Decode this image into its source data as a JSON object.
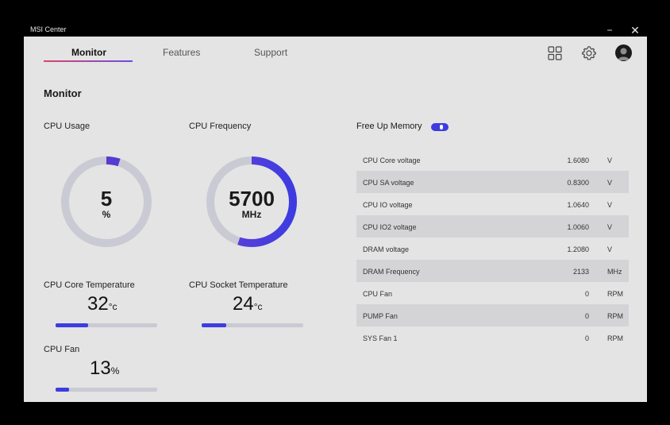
{
  "app": {
    "title": "MSI Center",
    "minimize": "−",
    "close": "✕"
  },
  "tabs": [
    {
      "label": "Monitor",
      "active": true
    },
    {
      "label": "Features"
    },
    {
      "label": "Support"
    }
  ],
  "header_icons": [
    "grid-icon",
    "gear-icon",
    "avatar"
  ],
  "page_title": "Monitor",
  "cpu_usage": {
    "label": "CPU Usage",
    "value": "5",
    "unit": "%",
    "fraction": 0.05
  },
  "cpu_frequency": {
    "label": "CPU Frequency",
    "value": "5700",
    "unit": "MHz",
    "fraction": 0.55
  },
  "cpu_core_temp": {
    "label": "CPU Core Temperature",
    "value": "32",
    "unit": "°c",
    "fraction": 0.32
  },
  "cpu_socket_temp": {
    "label": "CPU Socket Temperature",
    "value": "24",
    "unit": "°c",
    "fraction": 0.24
  },
  "cpu_fan": {
    "label": "CPU Fan",
    "value": "13",
    "unit": "%",
    "fraction": 0.13
  },
  "free_up_memory": {
    "label": "Free Up Memory",
    "enabled": true
  },
  "colors": {
    "accent": "#3d3ce0",
    "accent_start": "#9b3fb8",
    "track": "#c9cad3",
    "background": "#e4e4e4"
  },
  "voltages": [
    {
      "name": "CPU Core voltage",
      "value": "1.6080",
      "unit": "V"
    },
    {
      "name": "CPU SA voltage",
      "value": "0.8300",
      "unit": "V"
    },
    {
      "name": "CPU IO voltage",
      "value": "1.0640",
      "unit": "V"
    },
    {
      "name": "CPU IO2 voltage",
      "value": "1.0060",
      "unit": "V"
    },
    {
      "name": "DRAM voltage",
      "value": "1.2080",
      "unit": "V"
    },
    {
      "name": "DRAM Frequency",
      "value": "2133",
      "unit": "MHz"
    },
    {
      "name": "CPU Fan",
      "value": "0",
      "unit": "RPM"
    },
    {
      "name": "PUMP Fan",
      "value": "0",
      "unit": "RPM"
    },
    {
      "name": "SYS Fan 1",
      "value": "0",
      "unit": "RPM"
    }
  ]
}
